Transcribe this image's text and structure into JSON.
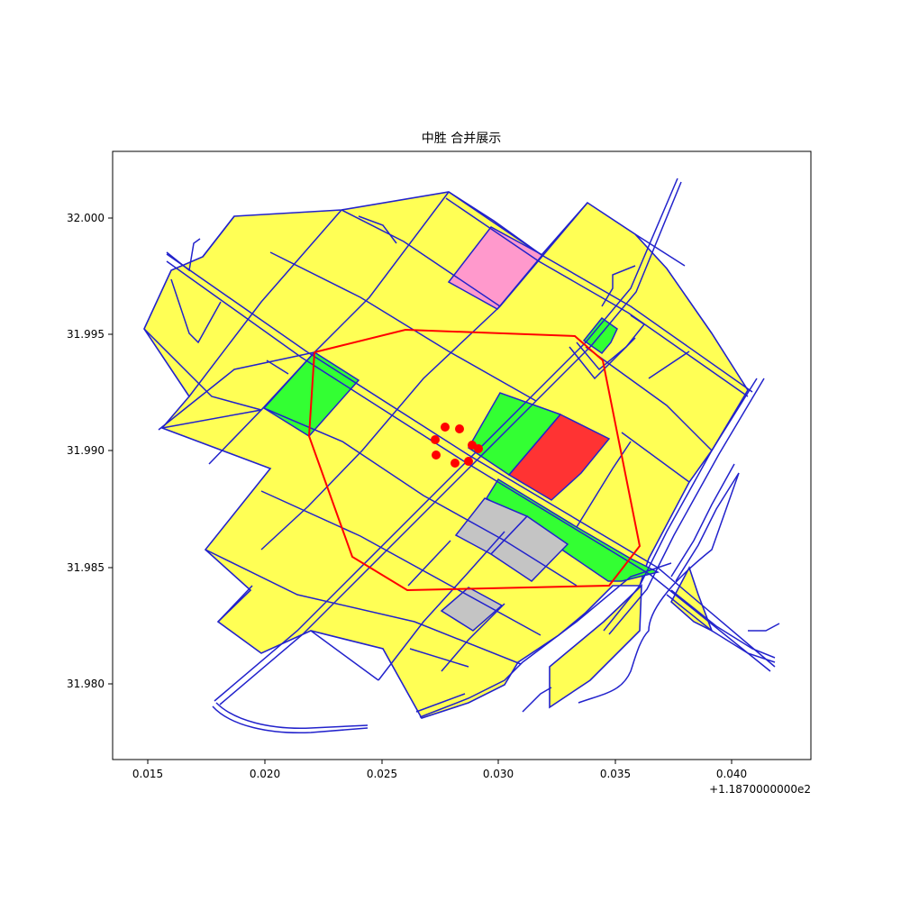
{
  "title": "中胜 合并展示",
  "axes": {
    "x_ticks": [
      "0.015",
      "0.020",
      "0.025",
      "0.030",
      "0.035",
      "0.040"
    ],
    "y_ticks": [
      "32.000",
      "31.995",
      "31.990",
      "31.985",
      "31.980"
    ],
    "x_offset_label": "+1.1870000000e2"
  },
  "colors": {
    "parcel_yellow": "#ffff55",
    "parcel_green": "#33ff33",
    "parcel_pink": "#ff99cc",
    "parcel_red": "#ff3333",
    "parcel_gray": "#c4c4c4",
    "road_line": "#2222cc",
    "route_line": "#ff0000",
    "point": "#ff0000"
  },
  "legend_semantics": {
    "highlighted_parcels": [
      "green",
      "pink",
      "red",
      "gray"
    ],
    "route": "red polygon route",
    "points_count": 10
  }
}
